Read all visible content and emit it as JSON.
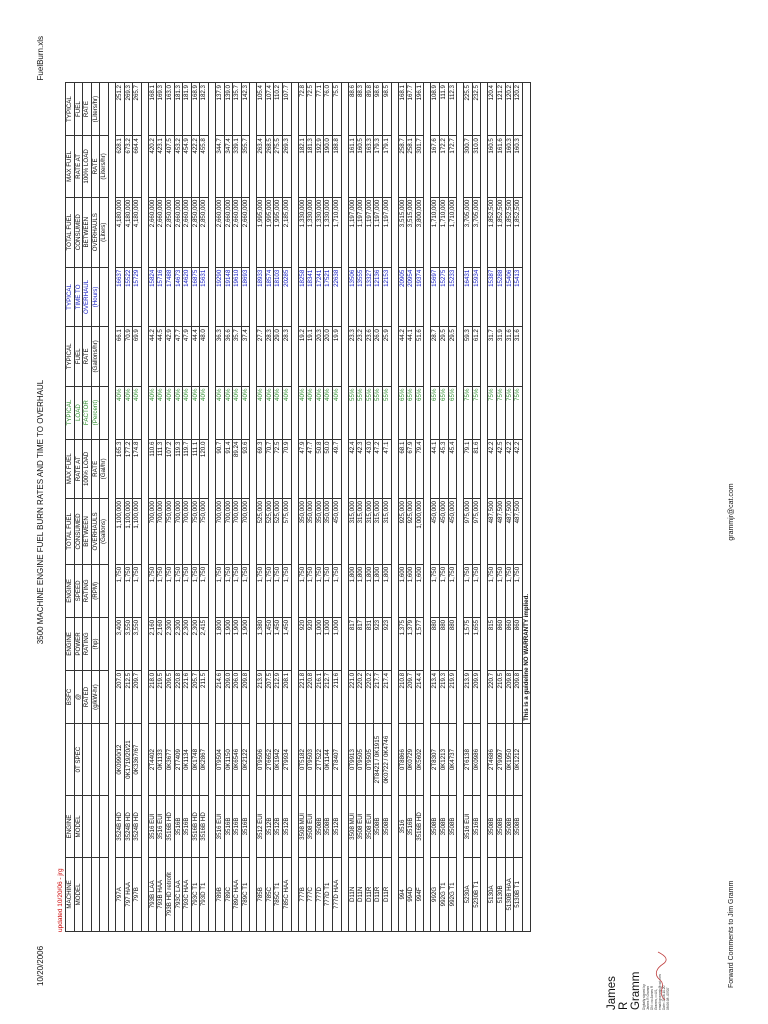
{
  "header": {
    "date": "10/20/2006",
    "title": "3500 MACHINE ENGINE FUEL BURN RATES AND TIME TO OVERHAUL",
    "filename": "FuelBurn.xls",
    "updated": "updated 10/20/06 - jrg"
  },
  "columns": [
    {
      "l1": "MACHINE",
      "l2": "MODEL",
      "l3": "",
      "l4": ""
    },
    {
      "l1": "ENGINE",
      "l2": "MODEL",
      "l3": "",
      "l4": ""
    },
    {
      "l1": "",
      "l2": "0T SPEC",
      "l3": "",
      "l4": ""
    },
    {
      "l1": "BSFC",
      "l2": "@",
      "l3": "RATED",
      "l4": "(g/kW-hr)"
    },
    {
      "l1": "ENGINE",
      "l2": "POWER",
      "l3": "RATING",
      "l4": "(hp)"
    },
    {
      "l1": "ENGINE",
      "l2": "SPEED",
      "l3": "RATING",
      "l4": "(RPM)"
    },
    {
      "l1": "TOTAL FUEL",
      "l2": "CONSUMED",
      "l3": "BETWEEN",
      "l4": "OVERHAULS",
      "l5": "(Gallons)"
    },
    {
      "l1": "MAX FUEL",
      "l2": "RATE AT",
      "l3": "100% LOAD",
      "l4": "RATE",
      "l5": "(Gal/hr)"
    },
    {
      "l1": "TYPICAL",
      "l2": "LOAD",
      "l3": "FACTOR",
      "l4": "(Percent)"
    },
    {
      "l1": "TYPICAL",
      "l2": "FUEL",
      "l3": "RATE",
      "l4": "(Gallons/hr)"
    },
    {
      "l1": "TYPICAL",
      "l2": "TIME TO",
      "l3": "OVERHAUL",
      "l4": "(Hours)"
    },
    {
      "l1": "TOTAL FUEL",
      "l2": "CONSUMED",
      "l3": "BETWEEN",
      "l4": "OVERHAULS",
      "l5": "(Liters)"
    },
    {
      "l1": "MAX FUEL",
      "l2": "RATE AT",
      "l3": "100% LOAD",
      "l4": "RATE",
      "l5": "(Liters/hr)"
    },
    {
      "l1": "TYPICAL",
      "l2": "FUEL",
      "l3": "RATE",
      "l4": "(Liters/hr)"
    }
  ],
  "groups": [
    {
      "rows": [
        [
          "797A",
          "3524B HD",
          "0K0990/12",
          "207.0",
          "3,400",
          "1,750",
          "1,100,000",
          "165.3",
          "40%",
          "66.1",
          "16637",
          "4,180,000",
          "628.1",
          "251.2"
        ],
        [
          "797 HAA",
          "3524B HD",
          "0K1719/20/21",
          "212.5",
          "3,550",
          "1,750",
          "1,100,000",
          "177.2",
          "40%",
          "70.9",
          "15522",
          "4,180,000",
          "673.2",
          "269.3"
        ],
        [
          "797B",
          "3524B HD",
          "0K3367/67",
          "209.7",
          "3,550",
          "1,750",
          "1,100,000",
          "174.8",
          "40%",
          "69.9",
          "15729",
          "4,180,000",
          "664.4",
          "265.7"
        ]
      ]
    },
    {
      "rows": [
        [
          "793B LAA",
          "3516 EUI",
          "2T4402",
          "218.0",
          "2,160",
          "1,750",
          "700,000",
          "110.6",
          "40%",
          "44.2",
          "15824",
          "2,660,000",
          "420.2",
          "168.1"
        ],
        [
          "793B HAA",
          "3516 EUI",
          "0K1133",
          "219.5",
          "2,160",
          "1,750",
          "700,000",
          "111.3",
          "40%",
          "44.5",
          "15716",
          "2,660,000",
          "423.1",
          "169.3"
        ],
        [
          "793B HD retrofit",
          "3516B HD",
          "0K3677",
          "209.5",
          "2,300",
          "1,750",
          "750,000",
          "107.2",
          "40%",
          "42.9",
          "17488",
          "2,850,000",
          "407.5",
          "163.0"
        ],
        [
          "793C LAA",
          "3516B",
          "2T7409",
          "220.8",
          "2,300",
          "1,750",
          "700,000",
          "119.3",
          "40%",
          "47.7",
          "14673",
          "2,660,000",
          "453.2",
          "181.3"
        ],
        [
          "793C HAA",
          "3516B",
          "0K1134",
          "221.6",
          "2,300",
          "1,750",
          "700,000",
          "119.7",
          "40%",
          "47.9",
          "14620",
          "2,660,000",
          "454.9",
          "181.9"
        ],
        [
          "793C T1",
          "3516B HD",
          "0K1748",
          "205.7",
          "2,300",
          "1,750",
          "750,000",
          "111.1",
          "40%",
          "44.4",
          "16875",
          "2,850,000",
          "422.2",
          "168.9"
        ],
        [
          "793D T1",
          "3516B HD",
          "0K2867",
          "211.5",
          "2,415",
          "1,750",
          "750,000",
          "120.0",
          "40%",
          "48.0",
          "15631",
          "2,850,000",
          "455.8",
          "182.3"
        ]
      ]
    },
    {
      "rows": [
        [
          "789B",
          "3516 EUI",
          "0T9504",
          "214.6",
          "1,800",
          "1,750",
          "700,000",
          "90.7",
          "40%",
          "36.3",
          "19290",
          "2,660,000",
          "344.7",
          "137.9"
        ],
        [
          "789C",
          "3516B",
          "0K1150",
          "209.0",
          "1,900",
          "1,750",
          "700,000",
          "91.4",
          "40%",
          "36.6",
          "19148",
          "2,660,000",
          "347.4",
          "139.0"
        ],
        [
          "789C HAA",
          "3516B",
          "0K6546",
          "206.0",
          "1,900",
          "1,750",
          "700,000",
          "89.24",
          "40%",
          "35.7",
          "19610",
          "2,660,000",
          "339.1",
          "135.7"
        ],
        [
          "789C T1",
          "3516B",
          "0K2122",
          "209.8",
          "1,900",
          "1,750",
          "700,000",
          "93.6",
          "40%",
          "37.4",
          "18693",
          "2,660,000",
          "355.7",
          "142.3"
        ]
      ]
    },
    {
      "rows": [
        [
          "785B",
          "3512 EUI",
          "0T9506",
          "213.9",
          "1,380",
          "1,750",
          "525,000",
          "69.3",
          "40%",
          "27.7",
          "18933",
          "1,995,000",
          "263.4",
          "105.4"
        ],
        [
          "785C",
          "3512B",
          "2T6652",
          "207.5",
          "1,450",
          "1,750",
          "525,000",
          "70.7",
          "40%",
          "28.3",
          "18574",
          "1,995,000",
          "268.5",
          "107.4"
        ],
        [
          "785C T1",
          "3512B",
          "0K1942",
          "212.9",
          "1,450",
          "1,750",
          "525,000",
          "72.5",
          "40%",
          "29.0",
          "18103",
          "1,995,000",
          "275.5",
          "110.2"
        ],
        [
          "785C HAA",
          "3512B",
          "2T9934",
          "208.1",
          "1,450",
          "1,750",
          "575,000",
          "70.9",
          "40%",
          "28.3",
          "20285",
          "2,185,000",
          "269.3",
          "107.7"
        ]
      ]
    },
    {
      "rows": [
        [
          "777B",
          "3508 MUI",
          "0T5182",
          "221.8",
          "920",
          "1,750",
          "350,000",
          "47.9",
          "40%",
          "19.2",
          "18258",
          "1,330,000",
          "182.1",
          "72.8"
        ],
        [
          "777C",
          "3508 EUI",
          "0T9503",
          "220.8",
          "920",
          "1,750",
          "350,000",
          "47.7",
          "40%",
          "19.1",
          "18341",
          "1,330,000",
          "181.3",
          "72.5"
        ],
        [
          "777D",
          "3508B",
          "2T7522",
          "216.1",
          "1,000",
          "1,750",
          "350,000",
          "50.8",
          "40%",
          "20.3",
          "17241",
          "1,330,000",
          "192.9",
          "77.1"
        ],
        [
          "777D T1",
          "3508B",
          "0K1144",
          "212.7",
          "1,000",
          "1,750",
          "350,000",
          "50.0",
          "40%",
          "20.0",
          "17521",
          "1,330,000",
          "190.0",
          "76.0"
        ],
        [
          "777D HAA",
          "3512B",
          "2T8407",
          "211.6",
          "1,000",
          "1,750",
          "450,000",
          "49.7",
          "40%",
          "19.9",
          "22638",
          "1,710,000",
          "188.8",
          "75.5"
        ]
      ]
    },
    {
      "rows": [
        [
          "D11N",
          "3508 MUI",
          "0T9913",
          "221.0",
          "817",
          "1,800",
          "315,000",
          "42.4",
          "55%",
          "23.3",
          "13506",
          "1,197,000",
          "161.1",
          "88.6"
        ],
        [
          "D11N",
          "3508 EUI",
          "0T9505",
          "220.2",
          "817",
          "1,800",
          "315,000",
          "42.3",
          "55%",
          "23.2",
          "13555",
          "1,197,000",
          "160.5",
          "88.3"
        ],
        [
          "D11R",
          "3508 EUI",
          "0T9505",
          "220.2",
          "831",
          "1,800",
          "315,000",
          "43.0",
          "55%",
          "23.6",
          "13327",
          "1,197,000",
          "163.3",
          "89.8"
        ],
        [
          "D11R",
          "3508B",
          "2T8421 / 0K1915",
          "217.7",
          "923",
          "1,800",
          "315,000",
          "47.2",
          "55%",
          "26.0",
          "12136",
          "1,197,000",
          "179.3",
          "98.6"
        ],
        [
          "D11R",
          "3508B",
          "0K0722 / 0K4746",
          "217.4",
          "923",
          "1,800",
          "315,000",
          "47.1",
          "55%",
          "25.9",
          "12153",
          "1,197,000",
          "179.1",
          "98.5"
        ]
      ]
    },
    {
      "rows": [
        [
          "994",
          "3516",
          "0T8866",
          "210.8",
          "1,375",
          "1,600",
          "925,000",
          "68.1",
          "65%",
          "44.2",
          "20905",
          "3,515,000",
          "258.7",
          "168.1"
        ],
        [
          "994D",
          "3516B",
          "0K0729",
          "209.7",
          "1,379",
          "1,600",
          "925,000",
          "67.9",
          "65%",
          "44.1",
          "20954",
          "3,515,000",
          "258.1",
          "167.7"
        ],
        [
          "994F",
          "3516B HD",
          "0K5602",
          "214.4",
          "1,577",
          "1,600",
          "1,000,000",
          "79.4",
          "65%",
          "51.6",
          "19374",
          "3,800,000",
          "301.7",
          "196.1"
        ]
      ]
    },
    {
      "rows": [
        [
          "992G",
          "3508B",
          "2T8307",
          "213.4",
          "880",
          "1,750",
          "450,000",
          "44.1",
          "65%",
          "28.7",
          "15697",
          "1,710,000",
          "167.6",
          "108.9"
        ],
        [
          "992G T1",
          "3508B",
          "0K1213",
          "219.3",
          "880",
          "1,750",
          "450,000",
          "45.3",
          "65%",
          "29.5",
          "15275",
          "1,710,000",
          "172.2",
          "111.9"
        ],
        [
          "992G T1",
          "3508B",
          "0K4737",
          "219.9",
          "880",
          "1,750",
          "450,000",
          "45.4",
          "65%",
          "29.5",
          "15233",
          "1,710,000",
          "172.7",
          "112.3"
        ]
      ]
    },
    {
      "rows": [
        [
          "5230A",
          "3516 EUI",
          "2T6138",
          "213.9",
          "1,575",
          "1,750",
          "975,000",
          "79.1",
          "75%",
          "59.3",
          "16431",
          "3,705,000",
          "300.7",
          "225.5"
        ],
        [
          "5230B T1",
          "3516B",
          "0K0986",
          "209.9",
          "1,655",
          "1,750",
          "975,000",
          "81.6",
          "75%",
          "61.2",
          "15934",
          "3,705,000",
          "310.0",
          "232.5"
        ]
      ]
    },
    {
      "rows": [
        [
          "5130A",
          "3508B",
          "2T4686",
          "220.7",
          "815",
          "1,750",
          "487,500",
          "42.2",
          "75%",
          "31.7",
          "15387",
          "1,852,500",
          "160.5",
          "120.4"
        ],
        [
          "5130B",
          "3508B",
          "2T9097",
          "210.5",
          "860",
          "1,750",
          "487,500",
          "42.5",
          "75%",
          "31.9",
          "15288",
          "1,852,500",
          "161.6",
          "121.2"
        ],
        [
          "5130B HAA",
          "3508B",
          "0K1950",
          "209.8",
          "860",
          "1,750",
          "487,500",
          "42.2",
          "75%",
          "31.6",
          "15406",
          "1,852,500",
          "160.3",
          "120.2"
        ],
        [
          "5130B T1",
          "3508B",
          "0K1212",
          "209.8",
          "860",
          "1,750",
          "487,500",
          "42.2",
          "75%",
          "31.6",
          "15413",
          "1,852,500",
          "160.3",
          "120.2"
        ]
      ]
    }
  ],
  "disclaimer": "This is a guideline NO WARRANTY implied.",
  "footer": {
    "forward": "Forward Comments to Jim Gramm",
    "email": "grammjr@cat.com"
  },
  "signature": {
    "name": "James R Gramm",
    "note": "Digitally signed by James R Gramm DN: cn=James R Gramm, c=US, email=grammjr@cat.com Date: 2006.10.20 08:06:08 -05'00'"
  },
  "colors": {
    "updated": "#cc0000",
    "load_factor": "#2f8f2f",
    "time_to_overhaul": "#1a22c8"
  }
}
